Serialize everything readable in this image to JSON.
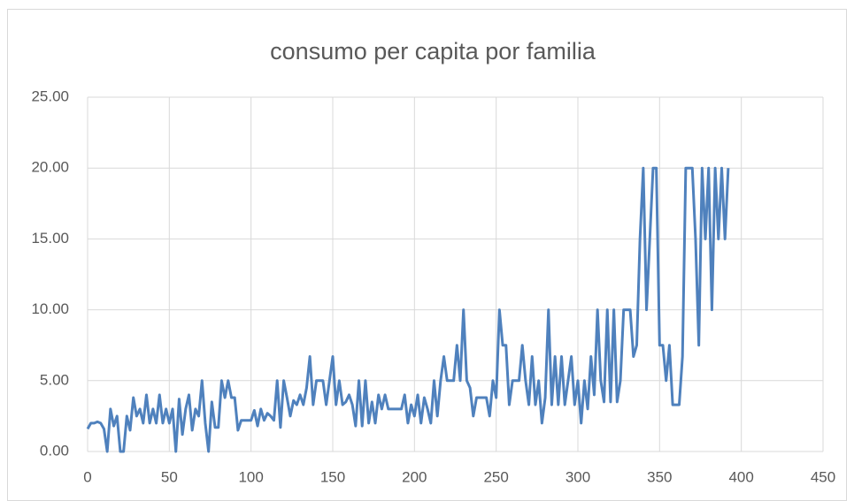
{
  "chart_data": {
    "type": "line",
    "title": "consumo per capita por familia",
    "x": [
      0,
      2,
      4,
      6,
      8,
      10,
      12,
      14,
      16,
      18,
      20,
      22,
      24,
      26,
      28,
      30,
      32,
      34,
      36,
      38,
      40,
      42,
      44,
      46,
      48,
      50,
      52,
      54,
      56,
      58,
      60,
      62,
      64,
      66,
      68,
      70,
      72,
      74,
      76,
      78,
      80,
      82,
      84,
      86,
      88,
      90,
      92,
      94,
      96,
      98,
      100,
      102,
      104,
      106,
      108,
      110,
      112,
      114,
      116,
      118,
      120,
      122,
      124,
      126,
      128,
      130,
      132,
      134,
      136,
      138,
      140,
      142,
      144,
      146,
      148,
      150,
      152,
      154,
      156,
      158,
      160,
      162,
      164,
      166,
      168,
      170,
      172,
      174,
      176,
      178,
      180,
      182,
      184,
      186,
      188,
      190,
      192,
      194,
      196,
      198,
      200,
      202,
      204,
      206,
      208,
      210,
      212,
      214,
      216,
      218,
      220,
      222,
      224,
      226,
      228,
      230,
      232,
      234,
      236,
      238,
      240,
      242,
      244,
      246,
      248,
      250,
      252,
      254,
      256,
      258,
      260,
      262,
      264,
      266,
      268,
      270,
      272,
      274,
      276,
      278,
      280,
      282,
      284,
      286,
      288,
      290,
      292,
      294,
      296,
      298,
      300,
      302,
      304,
      306,
      308,
      310,
      312,
      314,
      316,
      318,
      320,
      322,
      324,
      326,
      328,
      330,
      332,
      334,
      336,
      338,
      340,
      342,
      344,
      346,
      348,
      350,
      352,
      354,
      356,
      358,
      360,
      362,
      364,
      366,
      368,
      370,
      372,
      374,
      376,
      378,
      380,
      382,
      384,
      386,
      388,
      390,
      392
    ],
    "values": [
      1.6,
      2,
      2,
      2.1,
      2,
      1.6,
      0,
      3,
      1.8,
      2.5,
      0,
      0,
      2.5,
      1.5,
      3.8,
      2.5,
      3,
      2,
      4,
      2,
      3,
      2,
      4,
      2,
      3,
      2,
      3,
      0,
      3.7,
      1.2,
      3,
      4,
      1.5,
      3,
      2.5,
      5,
      2,
      0,
      3.5,
      1.7,
      1.7,
      5,
      3.8,
      5,
      3.8,
      3.8,
      1.5,
      2.2,
      2.2,
      2.2,
      2.2,
      2.9,
      1.8,
      3,
      2.2,
      2.7,
      2.5,
      2.2,
      5,
      1.7,
      5,
      3.8,
      2.5,
      3.6,
      3.3,
      4,
      3.3,
      4.5,
      6.7,
      3.3,
      5,
      5,
      5,
      3.3,
      5,
      6.7,
      3.3,
      5,
      3.3,
      3.5,
      4,
      3.3,
      1.8,
      5,
      1.8,
      5,
      2,
      3.5,
      2,
      4,
      3,
      4,
      3,
      3,
      3,
      3,
      3,
      4,
      2,
      3.3,
      2.5,
      4,
      2,
      3.8,
      3,
      2,
      5,
      2.5,
      5,
      6.7,
      5,
      5,
      5,
      7.5,
      5,
      10,
      5,
      4.5,
      2.5,
      3.8,
      3.8,
      3.8,
      3.8,
      2.5,
      5,
      3.8,
      10,
      7.5,
      7.5,
      3.3,
      5,
      5,
      5,
      7.5,
      5,
      3.3,
      6.7,
      3.3,
      5,
      2,
      3.8,
      10,
      3.3,
      6.7,
      3.3,
      6.7,
      3.3,
      5,
      6.7,
      3.3,
      5,
      2,
      5,
      3,
      6.7,
      4,
      10,
      5,
      3.5,
      10,
      3.5,
      10,
      3.5,
      5,
      10,
      10,
      10,
      6.7,
      7.5,
      15,
      20,
      10,
      15,
      20,
      20,
      7.5,
      7.5,
      5,
      7.5,
      3.3,
      3.3,
      3.3,
      6.7,
      20,
      20,
      20,
      15,
      7.5,
      20,
      15,
      20,
      10,
      20,
      15,
      20,
      15,
      20
    ],
    "color": "#4f81bd",
    "xlim": [
      0,
      450
    ],
    "xticks": [
      0,
      50,
      100,
      150,
      200,
      250,
      300,
      350,
      400,
      450
    ],
    "ylim": [
      0,
      25
    ],
    "yticks": [
      {
        "value": 0,
        "label": "0.00"
      },
      {
        "value": 5,
        "label": "5.00"
      },
      {
        "value": 10,
        "label": "10.00"
      },
      {
        "value": 15,
        "label": "15.00"
      },
      {
        "value": 20,
        "label": "20.00"
      },
      {
        "value": 25,
        "label": "25.00"
      }
    ],
    "grid": true
  }
}
